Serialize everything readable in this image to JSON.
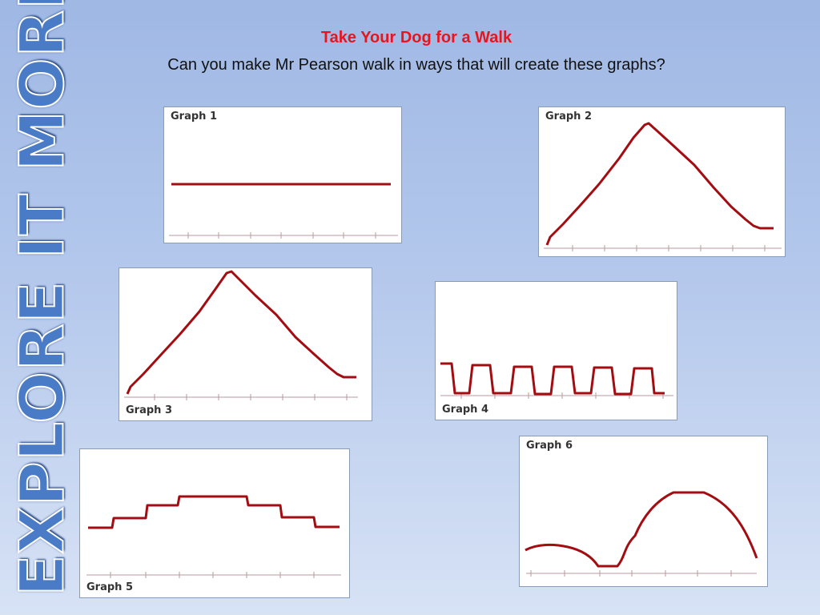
{
  "banner": "EXPLORE IT MORE!",
  "header": {
    "title": "Take Your Dog for a Walk",
    "subtitle": "Can you make Mr Pearson walk in ways that will create these graphs?"
  },
  "colors": {
    "curve": "#a30d12",
    "axis": "#b89aa0",
    "title": "#e8161b"
  },
  "graphs": [
    {
      "label": "Graph 1",
      "shape": "constant"
    },
    {
      "label": "Graph 2",
      "shape": "triangle"
    },
    {
      "label": "Graph 3",
      "shape": "triangle"
    },
    {
      "label": "Graph 4",
      "shape": "square-wave"
    },
    {
      "label": "Graph 5",
      "shape": "steps-up-down"
    },
    {
      "label": "Graph 6",
      "shape": "dip-then-hump"
    }
  ]
}
